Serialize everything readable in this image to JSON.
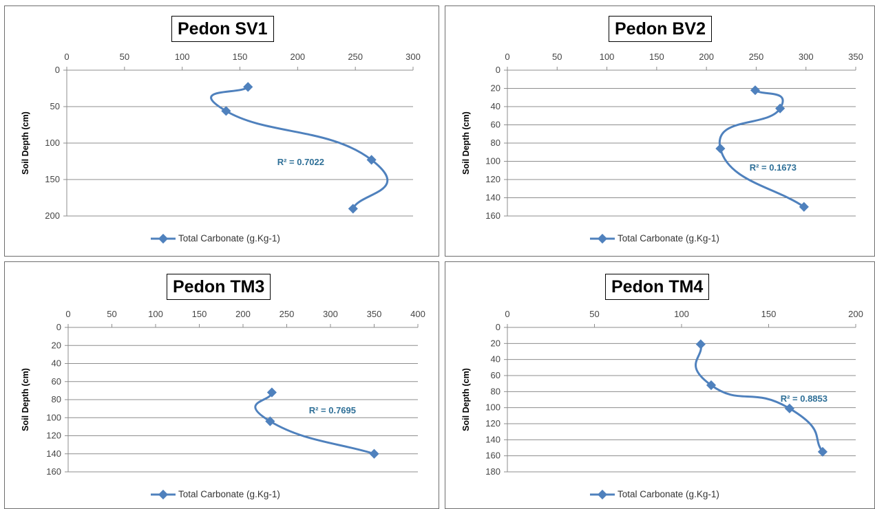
{
  "chart_data": [
    {
      "type": "line",
      "title": "Pedon SV1",
      "ylabel": "Soil Depth (cm)",
      "xlim": [
        0,
        300
      ],
      "xticks": [
        0,
        50,
        100,
        150,
        200,
        250,
        300
      ],
      "ylim": [
        0,
        200
      ],
      "yticks": [
        0,
        50,
        100,
        150,
        200
      ],
      "series": [
        {
          "name": "Total Carbonate (g.Kg-1)",
          "x": [
            157,
            138,
            264,
            248
          ],
          "y": [
            23,
            56,
            123,
            190
          ]
        }
      ],
      "annotation": "R² = 0.7022",
      "grid": true,
      "legend": "bottom",
      "color": "#4f81bd"
    },
    {
      "type": "line",
      "title": "Pedon BV2",
      "ylabel": "Soil Depth (cm)",
      "xlim": [
        0,
        350
      ],
      "xticks": [
        0,
        50,
        100,
        150,
        200,
        250,
        300,
        350
      ],
      "ylim": [
        0,
        160
      ],
      "yticks": [
        0,
        20,
        40,
        60,
        80,
        100,
        120,
        140,
        160
      ],
      "series": [
        {
          "name": "Total Carbonate (g.Kg-1)",
          "x": [
            249,
            274,
            214,
            298
          ],
          "y": [
            22,
            42,
            86,
            150
          ]
        }
      ],
      "annotation": "R² = 0.1673",
      "grid": true,
      "legend": "bottom",
      "color": "#4f81bd"
    },
    {
      "type": "line",
      "title": "Pedon TM3",
      "ylabel": "Soil Depth (cm)",
      "xlim": [
        0,
        400
      ],
      "xticks": [
        0,
        50,
        100,
        150,
        200,
        250,
        300,
        350,
        400
      ],
      "ylim": [
        0,
        160
      ],
      "yticks": [
        0,
        20,
        40,
        60,
        80,
        100,
        120,
        140,
        160
      ],
      "series": [
        {
          "name": "Total Carbonate (g.Kg-1)",
          "x": [
            233,
            231,
            350
          ],
          "y": [
            72,
            104,
            140
          ]
        }
      ],
      "annotation": "R² = 0.7695",
      "grid": true,
      "legend": "bottom",
      "color": "#4f81bd"
    },
    {
      "type": "line",
      "title": "Pedon TM4",
      "ylabel": "Soil Depth (cm)",
      "xlim": [
        0,
        200
      ],
      "xticks": [
        0,
        50,
        100,
        150,
        200
      ],
      "ylim": [
        0,
        180
      ],
      "yticks": [
        0,
        20,
        40,
        60,
        80,
        100,
        120,
        140,
        160,
        180
      ],
      "series": [
        {
          "name": "Total Carbonate (g.Kg-1)",
          "x": [
            111,
            117,
            162,
            181
          ],
          "y": [
            21,
            72,
            101,
            155
          ]
        }
      ],
      "annotation": "R² = 0.8853",
      "grid": true,
      "legend": "bottom",
      "color": "#4f81bd"
    }
  ]
}
